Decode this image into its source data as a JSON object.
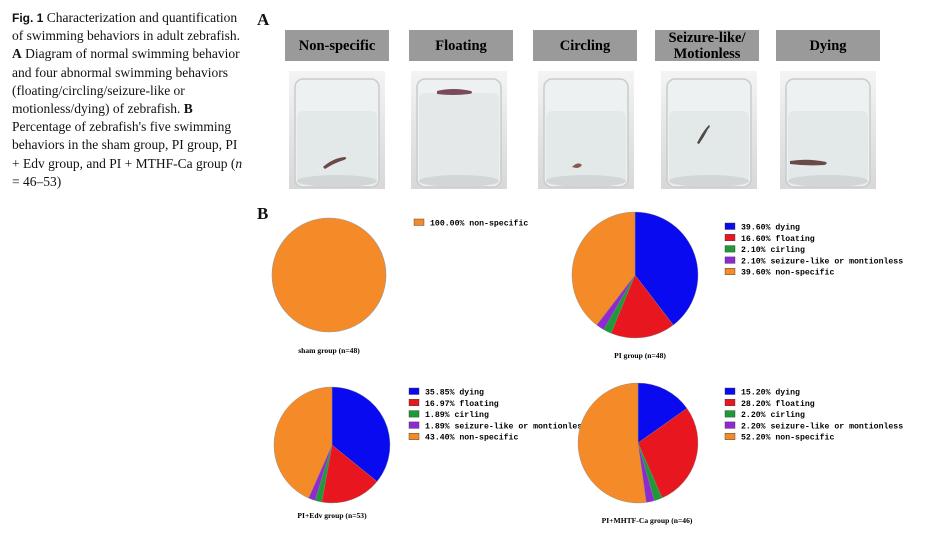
{
  "caption": {
    "fig_label": "Fig. 1",
    "body_a": "Characterization and quantification of swimming behaviors in adult zebrafish.",
    "label_a": "A",
    "text_a": "Diagram of normal swimming behavior and four abnormal swimming behaviors (floating/circling/seizure-like or motionless/dying) of zebrafish.",
    "label_b": "B",
    "text_b": "Percentage of zebrafish's five swimming behaviors in the sham group, PI group, PI + Edv group, and PI + MTHF-Ca group (",
    "n_var": "n",
    "n_range": " = 46–53)"
  },
  "panel_a": {
    "letter": "A",
    "behaviors": [
      {
        "label_line1": "Non-specific",
        "label_line2": ""
      },
      {
        "label_line1": "Floating",
        "label_line2": ""
      },
      {
        "label_line1": "Circling",
        "label_line2": ""
      },
      {
        "label_line1": "Seizure-like/",
        "label_line2": "Motionless"
      },
      {
        "label_line1": "Dying",
        "label_line2": ""
      }
    ]
  },
  "panel_b": {
    "letter": "B"
  },
  "colors": {
    "dying": "#0a0af0",
    "floating": "#e8161e",
    "circling": "#1f9a38",
    "seizure": "#8e2ad0",
    "non_specific": "#f48a28"
  },
  "chart_data": [
    {
      "type": "pie",
      "title": "sham group (n=48)",
      "slices": [
        {
          "key": "non_specific",
          "label": "non-specific",
          "pct_text": "100.00%",
          "value": 100.0
        }
      ]
    },
    {
      "type": "pie",
      "title": "PI group (n=48)",
      "slices": [
        {
          "key": "dying",
          "label": "dying",
          "pct_text": "39.60%",
          "value": 39.6
        },
        {
          "key": "floating",
          "label": "floating",
          "pct_text": "16.60%",
          "value": 16.6
        },
        {
          "key": "circling",
          "label": "cirling",
          "pct_text": "2.10%",
          "value": 2.1
        },
        {
          "key": "seizure",
          "label": "seizure-like or montionless",
          "pct_text": "2.10%",
          "value": 2.1
        },
        {
          "key": "non_specific",
          "label": "non-specific",
          "pct_text": "39.60%",
          "value": 39.6
        }
      ]
    },
    {
      "type": "pie",
      "title": "PI+Edv group (n=53)",
      "slices": [
        {
          "key": "dying",
          "label": "dying",
          "pct_text": "35.85%",
          "value": 35.85
        },
        {
          "key": "floating",
          "label": "floating",
          "pct_text": "16.97%",
          "value": 16.97
        },
        {
          "key": "circling",
          "label": "cirling",
          "pct_text": "1.89%",
          "value": 1.89
        },
        {
          "key": "seizure",
          "label": "seizure-like or montionless",
          "pct_text": "1.89%",
          "value": 1.89
        },
        {
          "key": "non_specific",
          "label": "non-specific",
          "pct_text": "43.40%",
          "value": 43.4
        }
      ]
    },
    {
      "type": "pie",
      "title": "PI+MHTF-Ca group (n=46)",
      "slices": [
        {
          "key": "dying",
          "label": "dying",
          "pct_text": "15.20%",
          "value": 15.2
        },
        {
          "key": "floating",
          "label": "floating",
          "pct_text": "28.20%",
          "value": 28.2
        },
        {
          "key": "circling",
          "label": "cirling",
          "pct_text": "2.20%",
          "value": 2.2
        },
        {
          "key": "seizure",
          "label": "seizure-like or montionless",
          "pct_text": "2.20%",
          "value": 2.2
        },
        {
          "key": "non_specific",
          "label": "non-specific",
          "pct_text": "52.20%",
          "value": 52.2
        }
      ]
    }
  ]
}
